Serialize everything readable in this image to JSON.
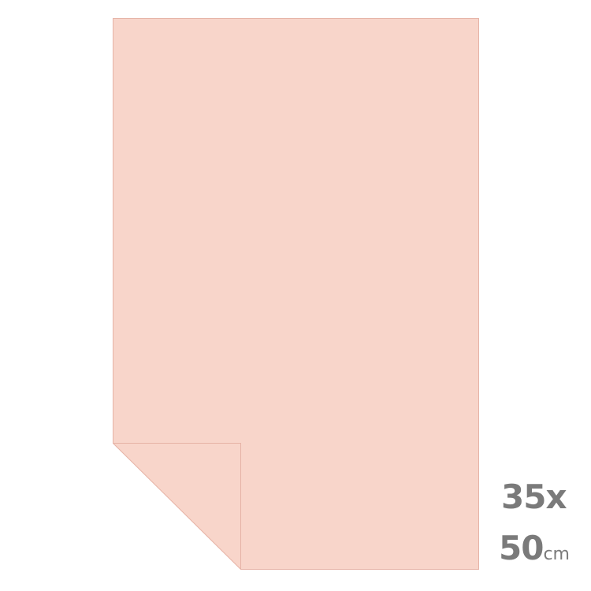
{
  "product": {
    "sheet_color": "#f8d5ca",
    "edge_color": "#e6b3a6",
    "size_width": "35x",
    "size_height": "50",
    "size_unit": "cm"
  }
}
